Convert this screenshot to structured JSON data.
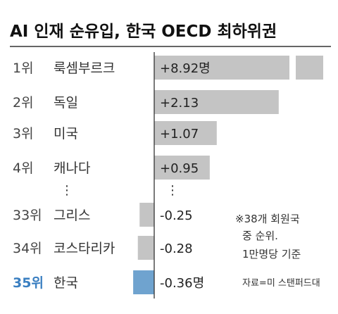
{
  "chart_data": {
    "type": "bar",
    "orientation": "horizontal",
    "title": "AI 인재 순유입, 한국 OECD 최하위권",
    "unit": "명",
    "categories": [
      "룩셈부르크",
      "독일",
      "미국",
      "캐나다",
      "그리스",
      "코스타리카",
      "한국"
    ],
    "ranks": [
      "1위",
      "2위",
      "3위",
      "4위",
      "33위",
      "34위",
      "35위"
    ],
    "values": [
      8.92,
      2.13,
      1.07,
      0.95,
      -0.25,
      -0.28,
      -0.36
    ],
    "value_labels": [
      "+8.92명",
      "+2.13",
      "+1.07",
      "+0.95",
      "-0.25",
      "-0.28",
      "-0.36명"
    ],
    "highlight_index": 6,
    "first_bar_truncated": true,
    "gap_marker": "⋮",
    "note_lines": [
      "※38개 회원국",
      "중 순위.",
      "1만명당 기준"
    ],
    "source": "자료=미 스탠퍼드대",
    "colors": {
      "bar": "#c4c4c4",
      "highlight": "#6fa3cf",
      "rank_highlight": "#3a7fc1",
      "rule": "#333333",
      "axis": "#333333"
    }
  }
}
